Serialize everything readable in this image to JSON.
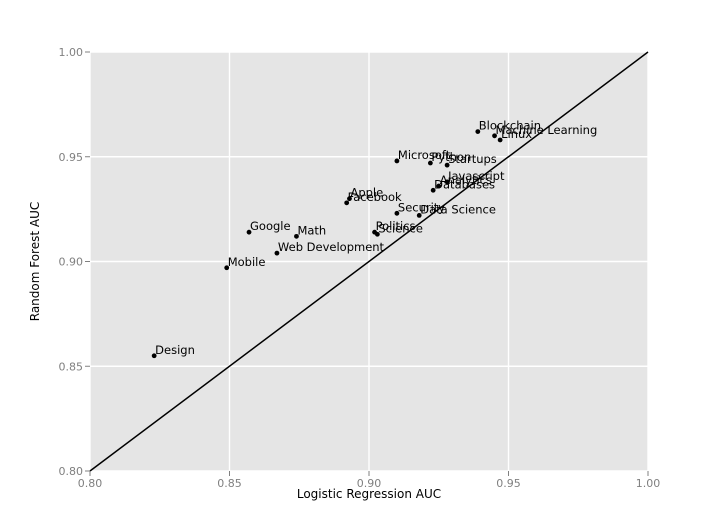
{
  "chart_data": {
    "type": "scatter",
    "xlabel": "Logistic Regression AUC",
    "ylabel": "Random Forest AUC",
    "xlim": [
      0.8,
      1.0
    ],
    "ylim": [
      0.8,
      1.0
    ],
    "xticks": [
      "0.80",
      "0.85",
      "0.90",
      "0.95",
      "1.00"
    ],
    "yticks": [
      "0.80",
      "0.85",
      "0.90",
      "0.95",
      "1.00"
    ],
    "grid": true,
    "reference_line": "y = x",
    "colors": {
      "panel": "#e5e5e5",
      "grid": "#ffffff",
      "point": "#000000",
      "line": "#000000"
    },
    "points": [
      {
        "label": "Design",
        "x": 0.823,
        "y": 0.855
      },
      {
        "label": "Mobile",
        "x": 0.849,
        "y": 0.897
      },
      {
        "label": "Google",
        "x": 0.857,
        "y": 0.914
      },
      {
        "label": "Web Development",
        "x": 0.867,
        "y": 0.904
      },
      {
        "label": "Math",
        "x": 0.874,
        "y": 0.912
      },
      {
        "label": "Facebook",
        "x": 0.892,
        "y": 0.928
      },
      {
        "label": "Apple",
        "x": 0.893,
        "y": 0.93
      },
      {
        "label": "Politics",
        "x": 0.902,
        "y": 0.914
      },
      {
        "label": "Science",
        "x": 0.903,
        "y": 0.913
      },
      {
        "label": "Security",
        "x": 0.91,
        "y": 0.923
      },
      {
        "label": "Microsoft",
        "x": 0.91,
        "y": 0.948
      },
      {
        "label": "Data Science",
        "x": 0.918,
        "y": 0.922
      },
      {
        "label": "Python",
        "x": 0.922,
        "y": 0.947
      },
      {
        "label": "Databases",
        "x": 0.923,
        "y": 0.934
      },
      {
        "label": "Analytics",
        "x": 0.925,
        "y": 0.936
      },
      {
        "label": "Startups",
        "x": 0.928,
        "y": 0.946
      },
      {
        "label": "Javascript",
        "x": 0.928,
        "y": 0.938
      },
      {
        "label": "Blockchain",
        "x": 0.939,
        "y": 0.962
      },
      {
        "label": "Machine Learning",
        "x": 0.945,
        "y": 0.96
      },
      {
        "label": "Linux",
        "x": 0.947,
        "y": 0.958
      }
    ]
  }
}
